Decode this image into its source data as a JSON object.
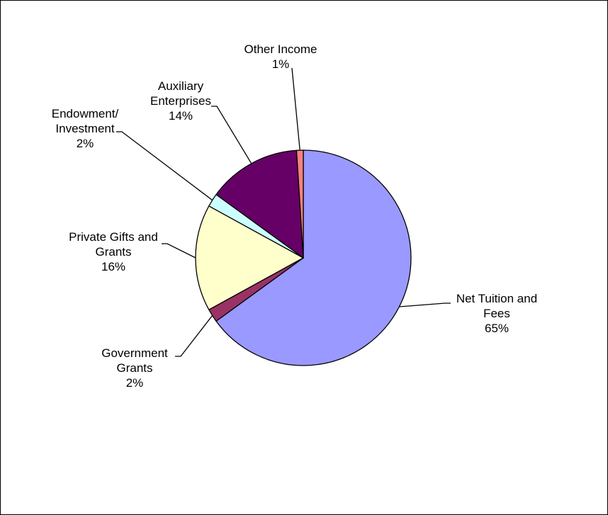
{
  "chart_data": {
    "type": "pie",
    "categories": [
      "Net Tuition and Fees",
      "Government Grants",
      "Private Gifts and Grants",
      "Endowment/ Investment",
      "Auxiliary Enterprises",
      "Other Income"
    ],
    "values": [
      65,
      2,
      16,
      2,
      14,
      1
    ],
    "value_labels": [
      "65%",
      "2%",
      "16%",
      "2%",
      "14%",
      "1%"
    ],
    "colors": [
      "#9999ff",
      "#993366",
      "#ffffcc",
      "#ccffff",
      "#660066",
      "#ff8080"
    ]
  }
}
